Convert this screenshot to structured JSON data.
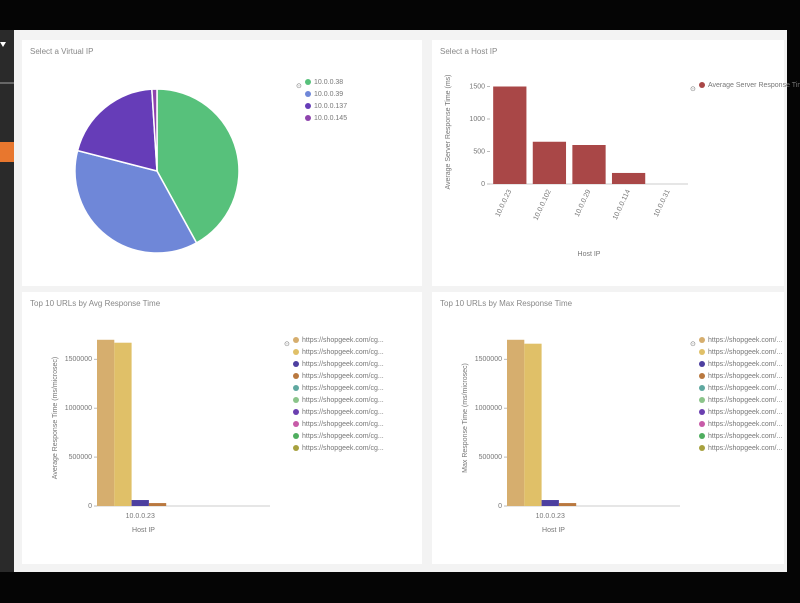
{
  "chart_data": [
    {
      "type": "pie",
      "title": "Select a Virtual IP",
      "categories": [
        "10.0.0.38",
        "10.0.0.39",
        "10.0.0.137",
        "10.0.0.145"
      ],
      "values": [
        42,
        37,
        20,
        1
      ],
      "colors": [
        "#57c17b",
        "#6f87d8",
        "#663db8",
        "#8e44ad"
      ]
    },
    {
      "type": "bar",
      "title": "Select a Host IP",
      "categories": [
        "10.0.0.23",
        "10.0.0.102",
        "10.0.0.29",
        "10.0.0.114",
        "10.0.0.31"
      ],
      "values": [
        1500,
        650,
        600,
        170,
        0
      ],
      "color": "#a94747",
      "legend": "Average Server Response Time",
      "ylabel": "Average Server Response Time (ms)",
      "xlabel": "Host IP",
      "ylim": [
        0,
        1600
      ],
      "yticks": [
        0,
        500,
        1000,
        1500
      ]
    },
    {
      "type": "bar",
      "title": "Top 10 URLs by Avg Response Time",
      "categories": [
        "10.0.0.23"
      ],
      "ylabel": "Average Response Time (ms/microsec)",
      "xlabel": "Host IP",
      "ylim": [
        0,
        1800000
      ],
      "yticks": [
        0,
        500000,
        1000000,
        1500000
      ],
      "series": [
        {
          "name": "https://shopgeek.com/cg...",
          "color": "#d6ae6e",
          "values": [
            1700000
          ]
        },
        {
          "name": "https://shopgeek.com/cg...",
          "color": "#e0c068",
          "values": [
            1670000
          ]
        },
        {
          "name": "https://shopgeek.com/cg...",
          "color": "#4d3fa0",
          "values": [
            61000
          ]
        },
        {
          "name": "https://shopgeek.com/cg...",
          "color": "#b9783f",
          "values": [
            30000
          ]
        },
        {
          "name": "https://shopgeek.com/cg...",
          "color": "#5fa8a0",
          "values": [
            0
          ]
        },
        {
          "name": "https://shopgeek.com/cg...",
          "color": "#8bc48a",
          "values": [
            0
          ]
        },
        {
          "name": "https://shopgeek.com/cg...",
          "color": "#6b3fb0",
          "values": [
            0
          ]
        },
        {
          "name": "https://shopgeek.com/cg...",
          "color": "#c75ba8",
          "values": [
            0
          ]
        },
        {
          "name": "https://shopgeek.com/cg...",
          "color": "#4fae5f",
          "values": [
            0
          ]
        },
        {
          "name": "https://shopgeek.com/cg...",
          "color": "#a7a13f",
          "values": [
            0
          ]
        }
      ]
    },
    {
      "type": "bar",
      "title": "Top 10 URLs by Max Response Time",
      "categories": [
        "10.0.0.23"
      ],
      "ylabel": "Max Response Time (ms/microsec)",
      "xlabel": "Host IP",
      "ylim": [
        0,
        1800000
      ],
      "yticks": [
        0,
        500000,
        1000000,
        1500000
      ],
      "series": [
        {
          "name": "https://shopgeek.com/...",
          "color": "#d6ae6e",
          "values": [
            1700000
          ]
        },
        {
          "name": "https://shopgeek.com/...",
          "color": "#e0c068",
          "values": [
            1660000
          ]
        },
        {
          "name": "https://shopgeek.com/...",
          "color": "#4d3fa0",
          "values": [
            61000
          ]
        },
        {
          "name": "https://shopgeek.com/...",
          "color": "#b9783f",
          "values": [
            30000
          ]
        },
        {
          "name": "https://shopgeek.com/...",
          "color": "#5fa8a0",
          "values": [
            0
          ]
        },
        {
          "name": "https://shopgeek.com/...",
          "color": "#8bc48a",
          "values": [
            0
          ]
        },
        {
          "name": "https://shopgeek.com/...",
          "color": "#6b3fb0",
          "values": [
            0
          ]
        },
        {
          "name": "https://shopgeek.com/...",
          "color": "#c75ba8",
          "values": [
            0
          ]
        },
        {
          "name": "https://shopgeek.com/...",
          "color": "#4fae5f",
          "values": [
            0
          ]
        },
        {
          "name": "https://shopgeek.com/...",
          "color": "#a7a13f",
          "values": [
            0
          ]
        }
      ]
    }
  ]
}
